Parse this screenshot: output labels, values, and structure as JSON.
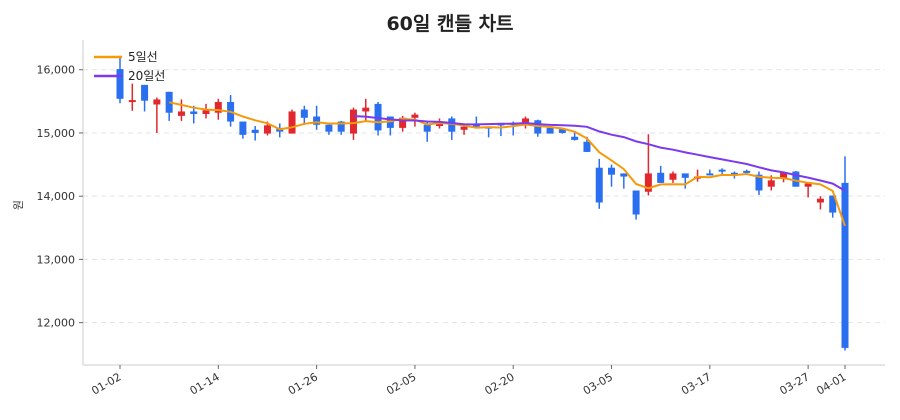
{
  "chart_data": {
    "type": "candlestick",
    "title": "60일 캔들 차트",
    "ylabel": "원",
    "xlabel": "",
    "ylim": [
      11330,
      16470
    ],
    "yticks": [
      12000,
      13000,
      14000,
      15000,
      16000
    ],
    "ytick_labels": [
      "12,000",
      "13,000",
      "14,000",
      "15,000",
      "16,000"
    ],
    "xtick_labels": [
      {
        "index": 0,
        "label": "01-02"
      },
      {
        "index": 8,
        "label": "01-14"
      },
      {
        "index": 16,
        "label": "01-26"
      },
      {
        "index": 24,
        "label": "02-05"
      },
      {
        "index": 32,
        "label": "02-20"
      },
      {
        "index": 40,
        "label": "03-05"
      },
      {
        "index": 48,
        "label": "03-17"
      },
      {
        "index": 56,
        "label": "03-27"
      },
      {
        "index": 59,
        "label": "04-01"
      }
    ],
    "grid": "horizontal dashed",
    "legend_position": "top-left",
    "colors": {
      "up": "#e0282e",
      "down": "#2a6ff0",
      "ma5": "#f59a0b",
      "ma20": "#7b3aed"
    },
    "moving_averages": [
      {
        "name": "5일선",
        "window": 5,
        "color": "#f59a0b"
      },
      {
        "name": "20일선",
        "window": 20,
        "color": "#7b3aed"
      }
    ],
    "ohlc": [
      [
        16010,
        16220,
        15470,
        15540
      ],
      [
        15500,
        15780,
        15350,
        15520
      ],
      [
        15760,
        15760,
        15340,
        15510
      ],
      [
        15450,
        15560,
        15000,
        15530
      ],
      [
        15650,
        15650,
        15190,
        15320
      ],
      [
        15270,
        15530,
        15190,
        15340
      ],
      [
        15340,
        15430,
        15150,
        15300
      ],
      [
        15300,
        15460,
        15230,
        15360
      ],
      [
        15320,
        15540,
        15210,
        15490
      ],
      [
        15490,
        15600,
        15100,
        15180
      ],
      [
        15180,
        15180,
        14910,
        14970
      ],
      [
        15050,
        15110,
        14880,
        15000
      ],
      [
        14990,
        15180,
        14960,
        15120
      ],
      [
        15080,
        15150,
        14930,
        15020
      ],
      [
        14990,
        15370,
        14990,
        15340
      ],
      [
        15370,
        15430,
        15130,
        15240
      ],
      [
        15260,
        15430,
        15050,
        15130
      ],
      [
        15130,
        15130,
        14970,
        15020
      ],
      [
        15180,
        15190,
        14970,
        15020
      ],
      [
        14990,
        15400,
        14890,
        15370
      ],
      [
        15340,
        15540,
        15180,
        15400
      ],
      [
        15460,
        15490,
        14960,
        15040
      ],
      [
        15260,
        15260,
        14960,
        15080
      ],
      [
        15080,
        15270,
        15020,
        15240
      ],
      [
        15240,
        15320,
        15100,
        15290
      ],
      [
        15130,
        15170,
        14860,
        15020
      ],
      [
        15110,
        15230,
        15070,
        15160
      ],
      [
        15230,
        15260,
        14890,
        15020
      ],
      [
        15050,
        15100,
        14970,
        15100
      ],
      [
        15130,
        15260,
        15080,
        15110
      ],
      [
        15100,
        15100,
        14930,
        15070
      ],
      [
        15150,
        15150,
        14950,
        15120
      ],
      [
        15160,
        15180,
        14960,
        15140
      ],
      [
        15160,
        15260,
        15070,
        15230
      ],
      [
        15200,
        15210,
        14940,
        14990
      ],
      [
        15080,
        15100,
        14990,
        14990
      ],
      [
        15060,
        15080,
        14990,
        15000
      ],
      [
        14940,
        15010,
        14880,
        14890
      ],
      [
        14860,
        14940,
        14700,
        14700
      ],
      [
        14450,
        14590,
        13800,
        13900
      ],
      [
        14450,
        14500,
        14150,
        14340
      ],
      [
        14360,
        14360,
        14120,
        14310
      ],
      [
        14090,
        14090,
        13630,
        13710
      ],
      [
        14070,
        14980,
        14010,
        14360
      ],
      [
        14370,
        14480,
        14210,
        14210
      ],
      [
        14260,
        14390,
        14210,
        14360
      ],
      [
        14360,
        14360,
        14120,
        14290
      ],
      [
        14290,
        14420,
        14230,
        14310
      ],
      [
        14360,
        14420,
        14330,
        14330
      ],
      [
        14420,
        14440,
        14340,
        14390
      ],
      [
        14370,
        14390,
        14280,
        14350
      ],
      [
        14400,
        14420,
        14340,
        14370
      ],
      [
        14340,
        14390,
        14020,
        14090
      ],
      [
        14150,
        14330,
        14090,
        14250
      ],
      [
        14280,
        14370,
        14220,
        14370
      ],
      [
        14390,
        14400,
        14150,
        14150
      ],
      [
        14150,
        14200,
        13980,
        14200
      ],
      [
        13900,
        14000,
        13790,
        13960
      ],
      [
        14010,
        14010,
        13660,
        13740
      ],
      [
        14210,
        14630,
        11560,
        11600
      ]
    ]
  }
}
